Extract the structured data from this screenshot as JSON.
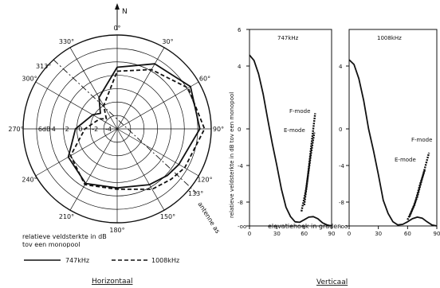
{
  "figure": {
    "north_label": "N",
    "horizontal_caption": "Horizontaal",
    "vertical_caption": "Verticaal",
    "legend_title_line1": "relatieve veldsterkte in dB",
    "legend_title_line2": "tov een monopool",
    "antenna_label": "antenne as",
    "antenna_angle_label": "133°",
    "angle_313_label": "313°"
  },
  "chart_data": [
    {
      "type": "polar",
      "title": "Horizontaal",
      "radial_labels": [
        "6dB",
        "4",
        "2",
        "0",
        "-2",
        "-4"
      ],
      "angle_labels": [
        "0°",
        "30°",
        "60°",
        "90°",
        "120°",
        "150°",
        "180°",
        "210°",
        "240°",
        "270°",
        "300°",
        "330°"
      ],
      "legend": [
        "747kHz",
        "1008kHz"
      ],
      "series": [
        {
          "name": "747kHz",
          "style": "solid",
          "color": "#111111",
          "theta_deg": [
            0,
            30,
            60,
            90,
            120,
            133,
            150,
            180,
            210,
            240,
            270,
            300,
            313,
            330
          ],
          "r_db": [
            3.2,
            5.2,
            6.6,
            6.3,
            4.6,
            4.2,
            3.6,
            2.8,
            3.4,
            2.4,
            0.2,
            -1.8,
            -2.6,
            -0.6
          ]
        },
        {
          "name": "1008kHz",
          "style": "dashed",
          "color": "#111111",
          "theta_deg": [
            0,
            30,
            60,
            90,
            120,
            133,
            150,
            180,
            210,
            240,
            270,
            300,
            313,
            330
          ],
          "r_db": [
            2.6,
            4.2,
            6.2,
            7.0,
            5.6,
            5.0,
            4.4,
            3.0,
            3.6,
            2.0,
            -1.2,
            -3.0,
            -3.8,
            -2.0
          ]
        }
      ]
    },
    {
      "type": "line",
      "title": "747kHz",
      "ylabel": "relatieve veldsterkte in dB tov een monopool",
      "xlabel": "elevatiehoek in graden",
      "x_ticks": [
        "0",
        "30",
        "60",
        "90"
      ],
      "y_ticks": [
        "6",
        "4",
        "0",
        "-4",
        "-8",
        "-oo"
      ],
      "xlim": [
        0,
        90
      ],
      "series": [
        {
          "name": "747kHz",
          "x": [
            0,
            5,
            10,
            15,
            20,
            25,
            30,
            35,
            40,
            45,
            50,
            55,
            60,
            65,
            70,
            75,
            80,
            85,
            90
          ],
          "y": [
            4.6,
            4.3,
            3.5,
            2.2,
            0.6,
            -1.6,
            -4.0,
            -6.6,
            -9.0,
            -10.8,
            -11.8,
            -11.9,
            -11.4,
            -10.9,
            -10.8,
            -11.2,
            -12.0,
            -12.4,
            -12.6
          ]
        }
      ],
      "annotations": [
        {
          "text": "F-mode",
          "x": [
            60,
            64,
            68,
            72
          ],
          "y": [
            -8.6,
            -5.2,
            -1.6,
            1.0
          ]
        },
        {
          "text": "E-mode",
          "x": [
            57,
            62,
            67,
            71
          ],
          "y": [
            -9.8,
            -6.6,
            -3.0,
            -0.4
          ]
        }
      ]
    },
    {
      "type": "line",
      "title": "1008kHz",
      "xlabel": "elevatiehoek in graden",
      "x_ticks": [
        "0",
        "30",
        "60",
        "90"
      ],
      "y_ticks": [
        "4",
        "0",
        "-4",
        "-8",
        "-oo"
      ],
      "xlim": [
        0,
        90
      ],
      "series": [
        {
          "name": "1008kHz",
          "x": [
            0,
            5,
            10,
            15,
            20,
            25,
            30,
            35,
            40,
            45,
            50,
            55,
            60,
            65,
            70,
            75,
            80,
            85,
            90
          ],
          "y": [
            4.4,
            4.1,
            3.2,
            1.8,
            0.0,
            -2.4,
            -5.0,
            -7.8,
            -10.2,
            -11.8,
            -12.4,
            -12.3,
            -11.8,
            -11.2,
            -10.9,
            -11.1,
            -11.8,
            -12.4,
            -12.6
          ]
        }
      ],
      "annotations": [
        {
          "text": "F-mode",
          "x": [
            62,
            70,
            77,
            82
          ],
          "y": [
            -10.8,
            -7.4,
            -4.6,
            -2.6
          ]
        },
        {
          "text": "E-mode",
          "x": [
            60,
            67,
            73,
            78
          ],
          "y": [
            -11.4,
            -8.6,
            -6.0,
            -4.4
          ]
        }
      ]
    }
  ]
}
